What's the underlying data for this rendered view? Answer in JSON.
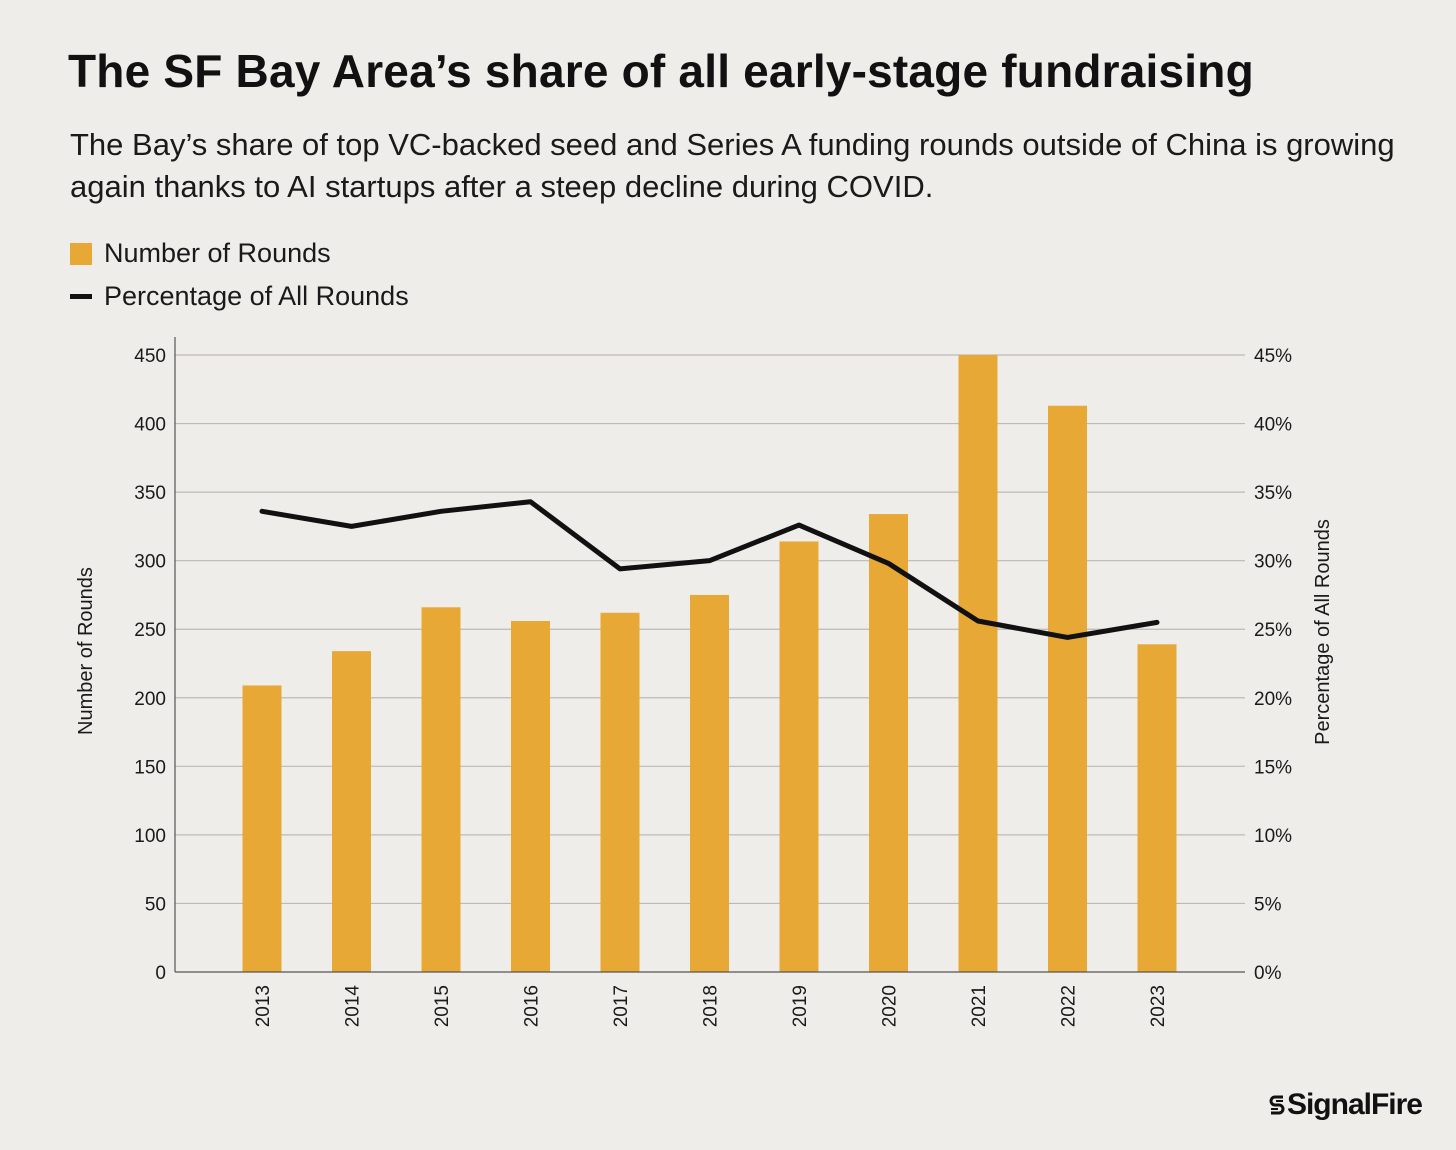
{
  "header": {
    "title": "The SF Bay Area’s share of all early-stage fundraising",
    "subtitle": "The Bay’s share of top VC-backed seed and Series A funding rounds outside of China is growing again thanks to AI startups after a steep decline during COVID."
  },
  "legend": {
    "bars_label": "Number of Rounds",
    "line_label": "Percentage of All Rounds"
  },
  "brand": {
    "name": "SignalFire"
  },
  "colors": {
    "bar": "#E8A835",
    "line": "#111111",
    "grid": "#BDBAB5",
    "background": "#EFEDEA"
  },
  "chart_data": {
    "type": "bar+line",
    "categories": [
      "2013",
      "2014",
      "2015",
      "2016",
      "2017",
      "2018",
      "2019",
      "2020",
      "2021",
      "2022",
      "2023"
    ],
    "series": [
      {
        "name": "Number of Rounds",
        "type": "bar",
        "axis": "left",
        "values": [
          209,
          234,
          266,
          256,
          262,
          275,
          314,
          334,
          450,
          413,
          239
        ]
      },
      {
        "name": "Percentage of All Rounds",
        "type": "line",
        "axis": "right",
        "values": [
          33.6,
          32.5,
          33.6,
          34.3,
          29.4,
          30.0,
          32.6,
          29.8,
          25.6,
          24.4,
          25.5
        ]
      }
    ],
    "ylabel_left": "Number of Rounds",
    "ylabel_right": "Percentage of All Rounds",
    "ylim_left": [
      0,
      450
    ],
    "ylim_right": [
      0,
      45
    ],
    "yticks_left": [
      "0",
      "50",
      "100",
      "150",
      "200",
      "250",
      "300",
      "350",
      "400",
      "450"
    ],
    "yticks_right": [
      "0%",
      "5%",
      "10%",
      "15%",
      "20%",
      "25%",
      "30%",
      "35%",
      "40%",
      "45%"
    ],
    "grid": true,
    "legend_position": "top-left"
  }
}
